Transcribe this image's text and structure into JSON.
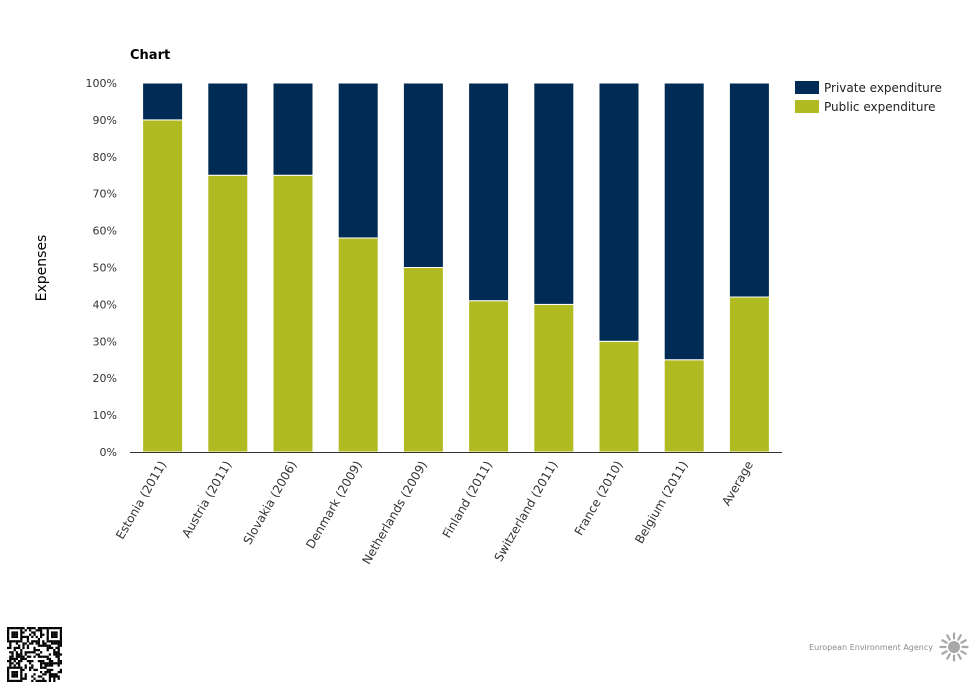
{
  "chart_data": {
    "type": "bar",
    "stacked": true,
    "title": "Chart",
    "ylabel": "Expenses",
    "xlabel": "",
    "ylim": [
      0,
      100
    ],
    "y_ticks": [
      "0%",
      "10%",
      "20%",
      "30%",
      "40%",
      "50%",
      "60%",
      "70%",
      "80%",
      "90%",
      "100%"
    ],
    "categories": [
      "Estonia (2011)",
      "Austria (2011)",
      "Slovakia (2006)",
      "Denmark (2009)",
      "Netherlands (2009)",
      "Finland (2011)",
      "Switzerland (2011)",
      "France (2010)",
      "Belgium (2011)",
      "Average"
    ],
    "series": [
      {
        "name": "Public expenditure",
        "color": "#b0bb22",
        "values": [
          90,
          75,
          75,
          58,
          50,
          41,
          40,
          30,
          25,
          42
        ]
      },
      {
        "name": "Private expenditure",
        "color": "#002b54",
        "values": [
          10,
          25,
          25,
          42,
          50,
          59,
          60,
          70,
          75,
          58
        ]
      }
    ],
    "legend_order": [
      "Private expenditure",
      "Public expenditure"
    ],
    "legend_position": "top-right",
    "grid": false
  },
  "footer": {
    "brand": "European Environment Agency"
  }
}
